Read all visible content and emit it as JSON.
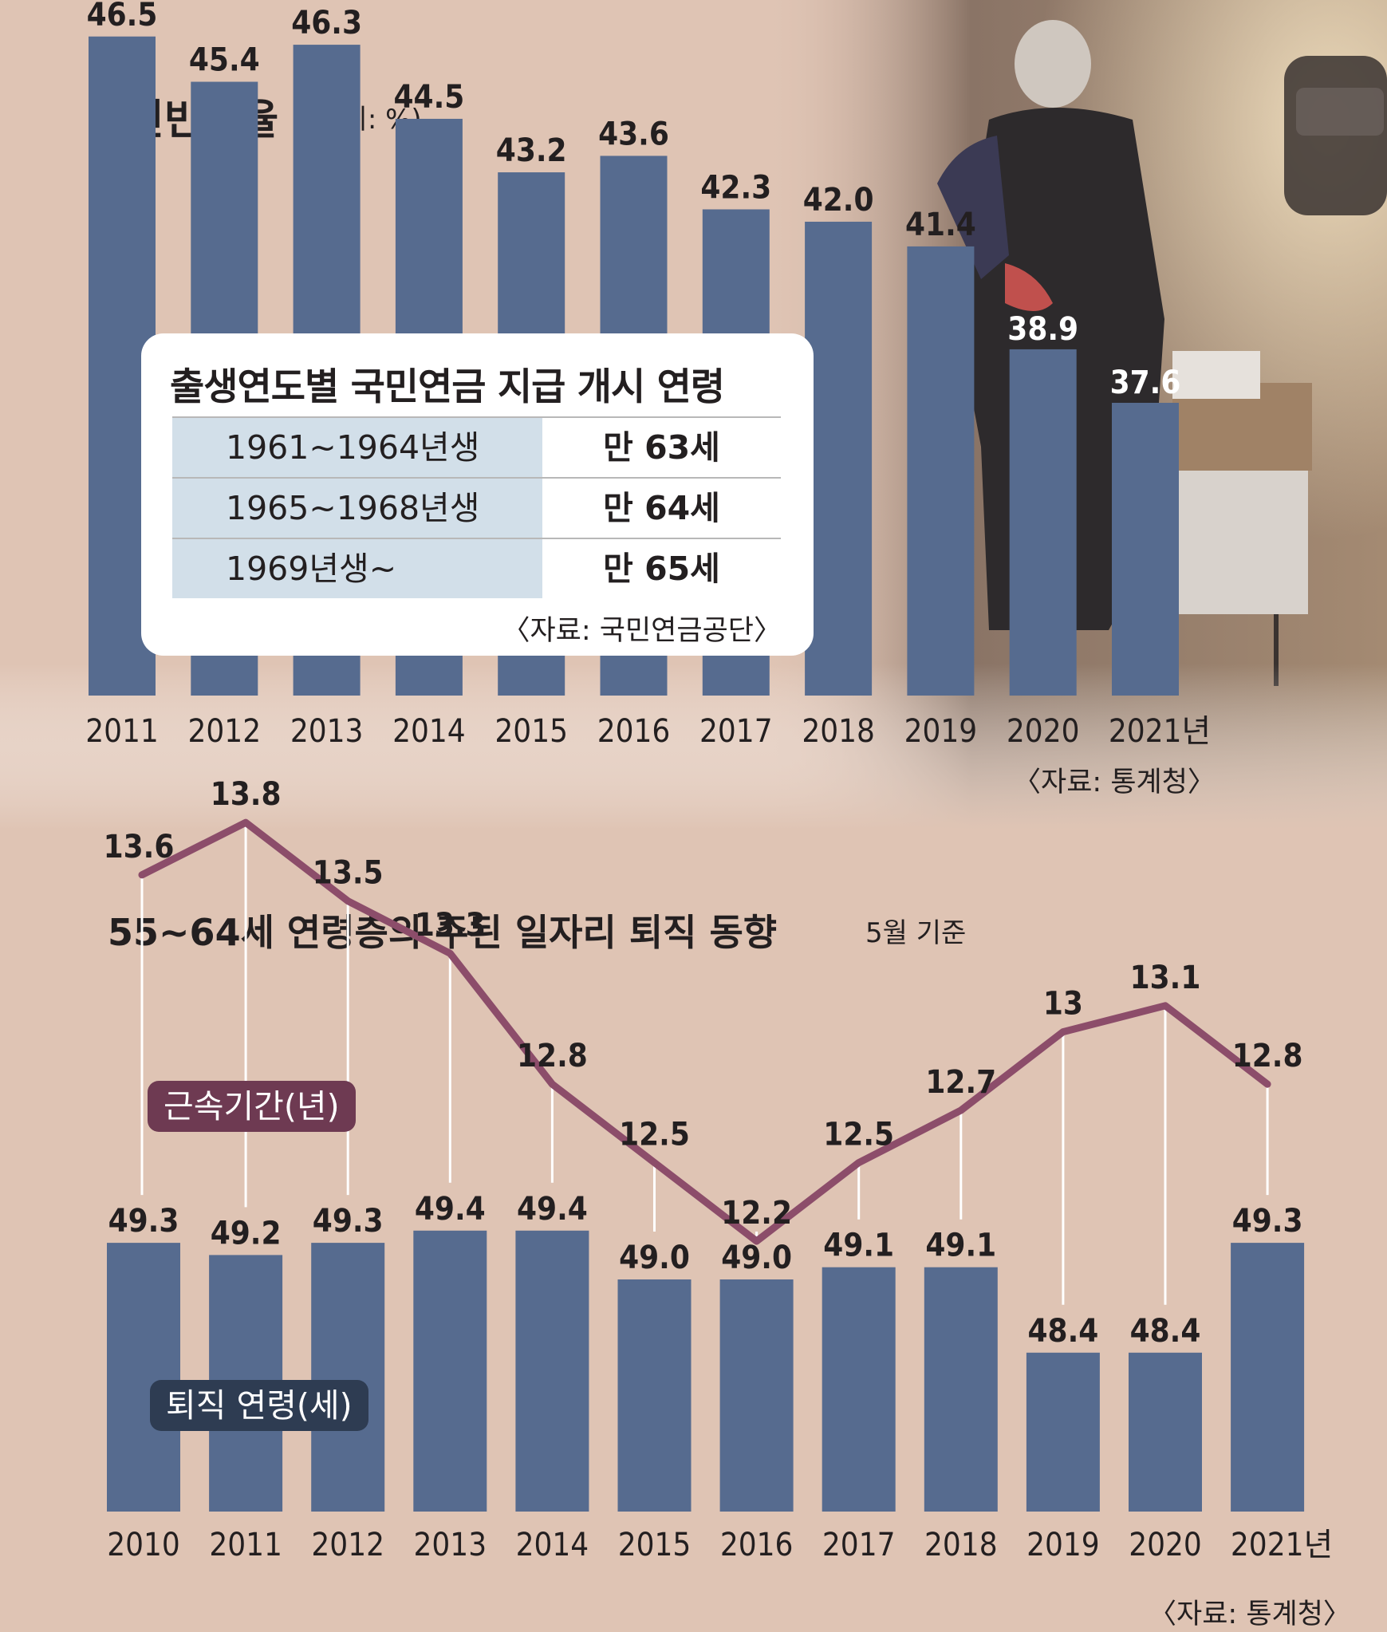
{
  "chart_data": [
    {
      "type": "bar",
      "title": "노인빈곤율",
      "unit": "(단위: %)",
      "categories": [
        "2011",
        "2012",
        "2013",
        "2014",
        "2015",
        "2016",
        "2017",
        "2018",
        "2019",
        "2020",
        "2021년"
      ],
      "values": [
        46.5,
        45.4,
        46.3,
        44.5,
        43.2,
        43.6,
        42.3,
        42.0,
        41.4,
        38.9,
        37.6
      ],
      "value_labels": [
        "46.5",
        "45.4",
        "46.3",
        "44.5",
        "43.2",
        "43.6",
        "42.3",
        "42.0",
        "41.4",
        "38.9",
        "37.6"
      ],
      "source": "〈자료: 통계청〉",
      "bar_color": "#566b8f"
    },
    {
      "type": "bar",
      "title": "55~64세 연령층의 주된 일자리 퇴직 동향",
      "note": "5월 기준",
      "categories": [
        "2010",
        "2011",
        "2012",
        "2013",
        "2014",
        "2015",
        "2016",
        "2017",
        "2018",
        "2019",
        "2020",
        "2021년"
      ],
      "series": [
        {
          "name": "근속기간(년)",
          "type": "line",
          "values": [
            13.6,
            13.8,
            13.5,
            13.3,
            12.8,
            12.5,
            12.2,
            12.5,
            12.7,
            13,
            13.1,
            12.8
          ],
          "value_labels": [
            "13.6",
            "13.8",
            "13.5",
            "13.3",
            "12.8",
            "12.5",
            "12.2",
            "12.5",
            "12.7",
            "13",
            "13.1",
            "12.8"
          ],
          "color": "#8c4d6a"
        },
        {
          "name": "퇴직 연령(세)",
          "type": "bar",
          "values": [
            49.3,
            49.2,
            49.3,
            49.4,
            49.4,
            49.0,
            49.0,
            49.1,
            49.1,
            48.4,
            48.4,
            49.3
          ],
          "value_labels": [
            "49.3",
            "49.2",
            "49.3",
            "49.4",
            "49.4",
            "49.0",
            "49.0",
            "49.1",
            "49.1",
            "48.4",
            "48.4",
            "49.3"
          ],
          "color": "#566b8f"
        }
      ],
      "source": "〈자료: 통계청〉"
    }
  ],
  "pension_table": {
    "title": "출생연도별 국민연금 지급 개시 연령",
    "rows": [
      {
        "cohort": "1961~1964년생",
        "age": "만 63세"
      },
      {
        "cohort": "1965~1968년생",
        "age": "만 64세"
      },
      {
        "cohort": "1969년생~",
        "age": "만 65세"
      }
    ],
    "source": "〈자료: 국민연금공단〉"
  },
  "colors": {
    "background": "#dfc4b4",
    "bar": "#566b8f",
    "line": "#8c4d6a",
    "tenure_tag": "#6e3a52",
    "retire_tag": "#2e3c52",
    "table_shade": "#d2dfe9"
  }
}
